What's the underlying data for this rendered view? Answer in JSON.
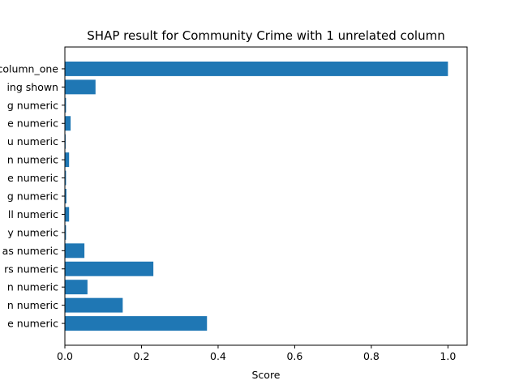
{
  "chart_data": {
    "type": "bar",
    "orientation": "horizontal",
    "title": "SHAP result for Community Crime with 1 unrelated column",
    "xlabel": "Score",
    "ylabel": "",
    "xlim": [
      0,
      1.05
    ],
    "xticks": [
      "0.0",
      "0.2",
      "0.4",
      "0.6",
      "0.8",
      "1.0"
    ],
    "xtick_values": [
      0,
      0.2,
      0.4,
      0.6,
      0.8,
      1.0
    ],
    "grid": false,
    "legend": "none",
    "bar_color": "#1f77b4",
    "categories": [
      "column_one",
      "ing shown",
      "g numeric",
      "e numeric",
      "u numeric",
      "n numeric",
      "e numeric",
      "g numeric",
      "ll numeric",
      "y numeric",
      "as numeric",
      "rs numeric",
      "n numeric",
      "n numeric",
      "e numeric"
    ],
    "values": [
      1.0,
      0.08,
      0.003,
      0.015,
      0.002,
      0.011,
      0.003,
      0.004,
      0.011,
      0.003,
      0.051,
      0.231,
      0.059,
      0.151,
      0.371
    ]
  }
}
